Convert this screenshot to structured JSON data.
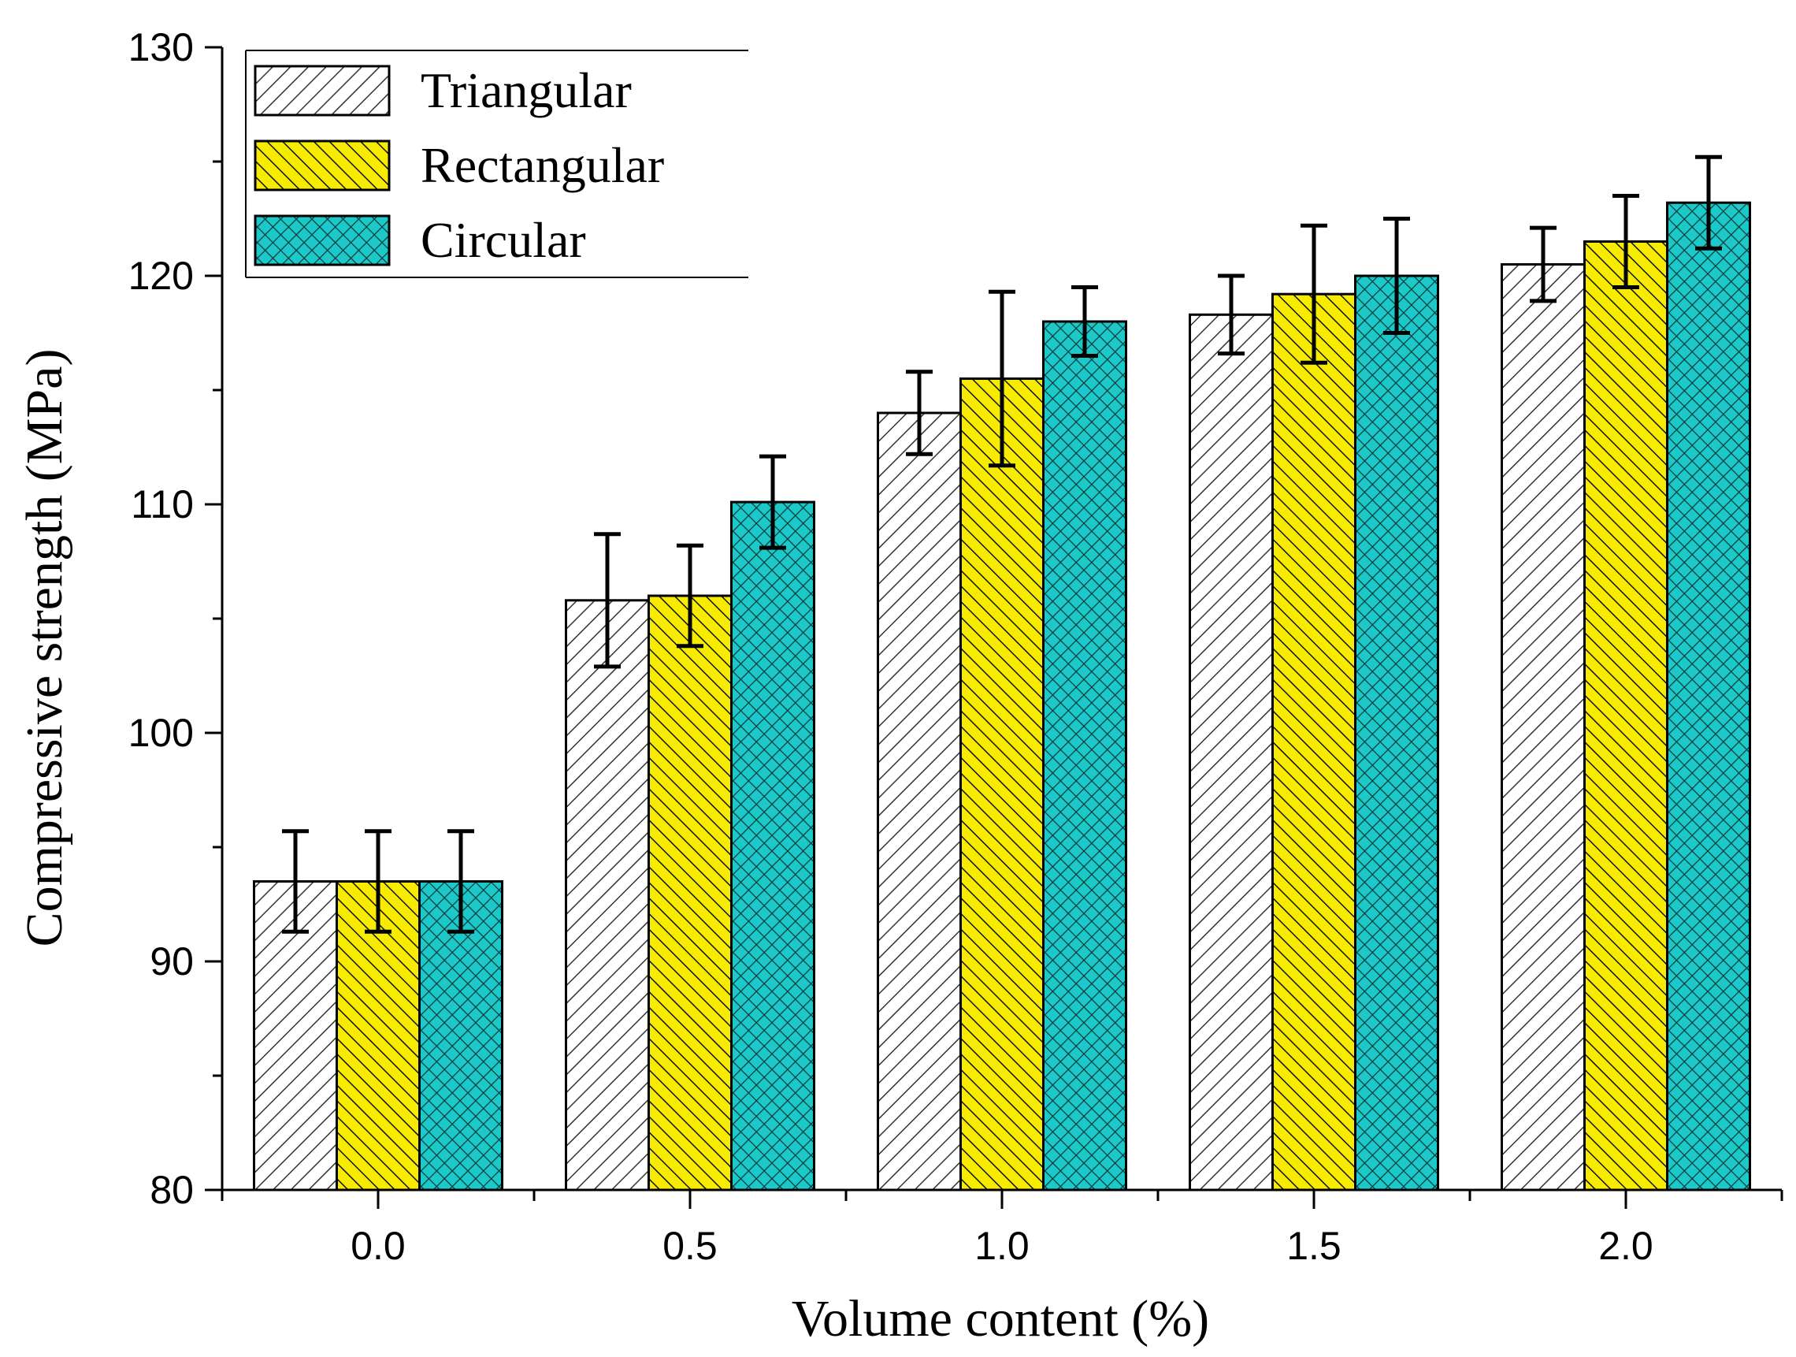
{
  "chart_data": {
    "type": "bar",
    "title": "",
    "xlabel": "Volume content (%)",
    "ylabel": "Compressive strength (MPa)",
    "ylim": [
      80,
      130
    ],
    "yticks": [
      "80",
      "90",
      "100",
      "110",
      "120",
      "130"
    ],
    "categories": [
      "0.0",
      "0.5",
      "1.0",
      "1.5",
      "2.0"
    ],
    "legend_position": "top-left",
    "series": [
      {
        "name": "Triangular",
        "fill": "#ffffff",
        "pattern": "diagonal",
        "values": [
          93.5,
          105.8,
          114.0,
          118.3,
          120.5
        ],
        "errors": [
          2.2,
          2.9,
          1.8,
          1.7,
          1.6
        ]
      },
      {
        "name": "Rectangular",
        "fill": "#f7ec00",
        "pattern": "diagonal-dense",
        "values": [
          93.5,
          106.0,
          115.5,
          119.2,
          121.5
        ],
        "errors": [
          2.2,
          2.2,
          3.8,
          3.0,
          2.0
        ]
      },
      {
        "name": "Circular",
        "fill": "#1dc8c8",
        "pattern": "crosshatch",
        "values": [
          93.5,
          110.1,
          118.0,
          120.0,
          123.2
        ],
        "errors": [
          2.2,
          2.0,
          1.5,
          2.5,
          2.0
        ]
      }
    ]
  }
}
